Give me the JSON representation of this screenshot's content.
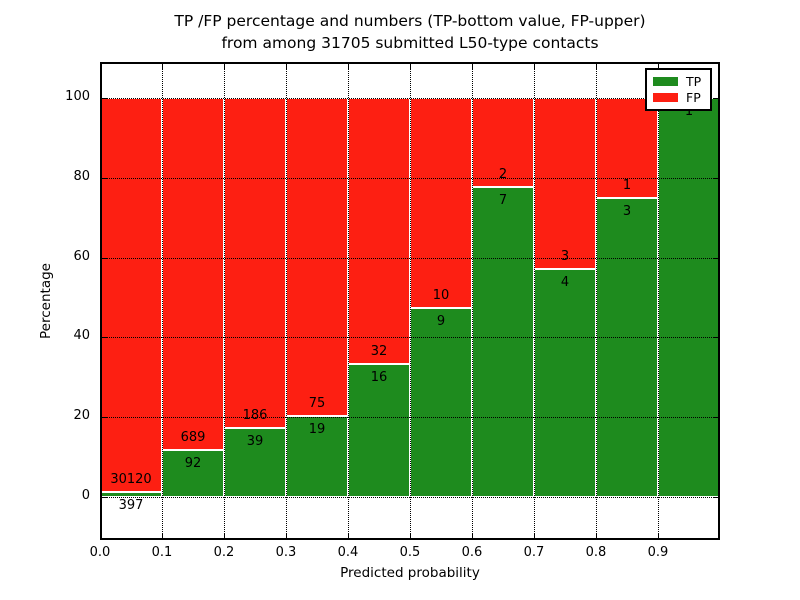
{
  "title": {
    "line1": "TP /FP percentage and numbers (TP-bottom value, FP-upper)",
    "line2": "from among 31705 submitted L50-type contacts"
  },
  "axes": {
    "ylabel": "Percentage",
    "xlabel": "Predicted probability",
    "yticks": [
      "0",
      "20",
      "40",
      "60",
      "80",
      "100"
    ],
    "ytick_values": [
      0,
      20,
      40,
      60,
      80,
      100
    ],
    "xticks": [
      "0.0",
      "0.1",
      "0.2",
      "0.3",
      "0.4",
      "0.5",
      "0.6",
      "0.7",
      "0.8",
      "0.9"
    ]
  },
  "legend": [
    {
      "label": "TP",
      "color": "#1e8b1e"
    },
    {
      "label": "FP",
      "color": "#fd1f12"
    }
  ],
  "colors": {
    "tp": "#1e8b1e",
    "fp": "#fd1f12",
    "grid": "#000000",
    "frame": "#000000",
    "background": "#ffffff"
  },
  "chart_data": {
    "type": "bar",
    "stacked": true,
    "normalized_to_percent": true,
    "title": "TP /FP percentage and numbers (TP-bottom value, FP-upper) from among 31705 submitted L50-type contacts",
    "xlabel": "Predicted probability",
    "ylabel": "Percentage",
    "xlim": [
      0.0,
      1.0
    ],
    "ylim": [
      -11,
      109
    ],
    "grid": true,
    "legend_position": "upper right",
    "bin_width": 0.1,
    "total_submitted": 31705,
    "categories": [
      "0.0-0.1",
      "0.1-0.2",
      "0.2-0.3",
      "0.3-0.4",
      "0.4-0.5",
      "0.5-0.6",
      "0.6-0.7",
      "0.7-0.8",
      "0.8-0.9",
      "0.9-1.0"
    ],
    "series": [
      {
        "name": "TP",
        "color": "#1e8b1e",
        "counts": [
          397,
          92,
          39,
          19,
          16,
          9,
          7,
          4,
          3,
          1
        ]
      },
      {
        "name": "FP",
        "color": "#fd1f12",
        "counts": [
          30120,
          689,
          186,
          75,
          32,
          10,
          2,
          3,
          1,
          0
        ]
      }
    ],
    "tp_percent_heights": [
      1.3,
      11.8,
      17.3,
      20.2,
      33.3,
      47.4,
      77.8,
      57.1,
      75.0,
      100.0
    ],
    "bars": [
      {
        "range": "0.0-0.1",
        "tp": 397,
        "fp": 30120,
        "tp_label": "397",
        "fp_label": "30120"
      },
      {
        "range": "0.1-0.2",
        "tp": 92,
        "fp": 689,
        "tp_label": "92",
        "fp_label": "689"
      },
      {
        "range": "0.2-0.3",
        "tp": 39,
        "fp": 186,
        "tp_label": "39",
        "fp_label": "186"
      },
      {
        "range": "0.3-0.4",
        "tp": 19,
        "fp": 75,
        "tp_label": "19",
        "fp_label": "75"
      },
      {
        "range": "0.4-0.5",
        "tp": 16,
        "fp": 32,
        "tp_label": "16",
        "fp_label": "32"
      },
      {
        "range": "0.5-0.6",
        "tp": 9,
        "fp": 10,
        "tp_label": "9",
        "fp_label": "10"
      },
      {
        "range": "0.6-0.7",
        "tp": 7,
        "fp": 2,
        "tp_label": "7",
        "fp_label": "2"
      },
      {
        "range": "0.7-0.8",
        "tp": 4,
        "fp": 3,
        "tp_label": "4",
        "fp_label": "3"
      },
      {
        "range": "0.8-0.9",
        "tp": 3,
        "fp": 1,
        "tp_label": "3",
        "fp_label": "1"
      },
      {
        "range": "0.9-1.0",
        "tp": 1,
        "fp": 0,
        "tp_label": "1",
        "fp_label": ""
      }
    ]
  }
}
